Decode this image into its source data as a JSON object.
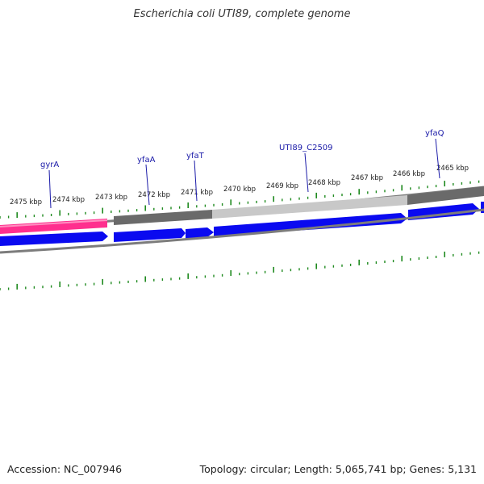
{
  "title": "Escherichia coli UTI89, complete genome",
  "footer": {
    "accession": "Accession: NC_007946",
    "summary": "Topology: circular; Length: 5,065,741 bp; Genes: 5,131"
  },
  "colors": {
    "cds": "#0a0af0",
    "rna": "#ff2f8e",
    "gene_dark": "#6a6a6a",
    "gene_light": "#c8c8c8",
    "backbone": "#7c7c7c",
    "ticks": "#1f8a1f",
    "gene_label": "#1a1aa8"
  },
  "tick_labels": [
    "2475 kbp",
    "2474 kbp",
    "2473 kbp",
    "2472 kbp",
    "2471 kbp",
    "2470 kbp",
    "2469 kbp",
    "2468 kbp",
    "2467 kbp",
    "2466 kbp",
    "2465 kbp"
  ],
  "gene_labels": [
    "gyrA",
    "yfaA",
    "yfaT",
    "UTI89_C2509",
    "yfaQ"
  ]
}
